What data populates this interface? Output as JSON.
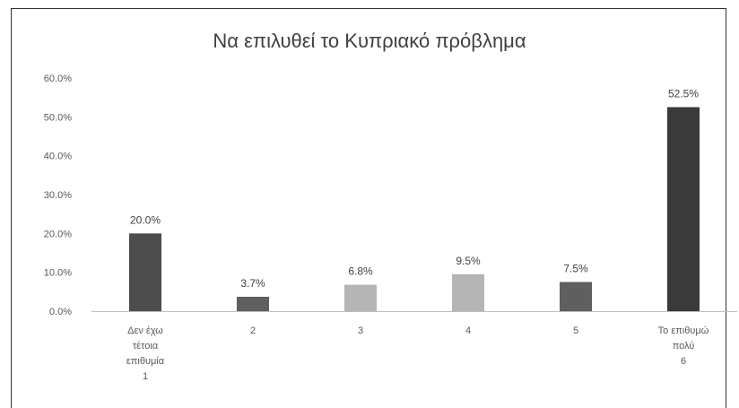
{
  "chart_data": {
    "type": "bar",
    "title": "Να επιλυθεί το Κυπριακό πρόβλημα",
    "categories": [
      [
        "Δεν έχω",
        "τέτοια",
        "επιθυμία",
        "1"
      ],
      [
        "2"
      ],
      [
        "3"
      ],
      [
        "4"
      ],
      [
        "5"
      ],
      [
        "Το επιθυμώ",
        "πολύ",
        "6"
      ]
    ],
    "values": [
      20.0,
      3.7,
      6.8,
      9.5,
      7.5,
      52.5
    ],
    "value_labels": [
      "20.0%",
      "3.7%",
      "6.8%",
      "9.5%",
      "7.5%",
      "52.5%"
    ],
    "bar_colors": [
      "#4d4d4d",
      "#5f5f5f",
      "#b5b5b5",
      "#b5b5b5",
      "#5f5f5f",
      "#3a3a3a"
    ],
    "yticks": [
      "0.0%",
      "10.0%",
      "20.0%",
      "30.0%",
      "40.0%",
      "50.0%",
      "60.0%"
    ],
    "ylim": [
      0,
      60
    ],
    "xlabel": "",
    "ylabel": "",
    "grid": false,
    "legend": "none"
  }
}
